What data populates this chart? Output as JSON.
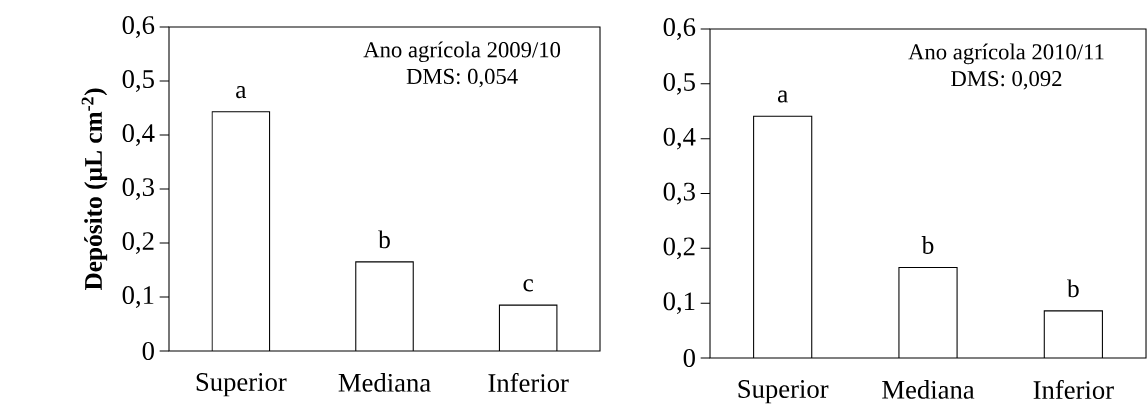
{
  "chart_data": [
    {
      "type": "bar",
      "ylabel": "Depósito (µL cm$^{-2}$)",
      "categories": [
        "Superior",
        "Mediana",
        "Inferior"
      ],
      "values": [
        0.443,
        0.165,
        0.085
      ],
      "color": "#ffffff",
      "ylim": [
        0,
        0.6
      ],
      "yticks": [
        0,
        {
          "value": 0.1,
          "label": "0,1"
        },
        {
          "value": 0.2,
          "label": "0,2"
        },
        {
          "value": 0.3,
          "label": "0,3"
        },
        {
          "value": 0.4,
          "label": "0,4"
        },
        {
          "value": 0.5,
          "label": "0,5"
        },
        {
          "value": 0.6,
          "label": "0,6"
        }
      ],
      "annotations": [
        "Ano agrícola 2009/10",
        "DMS: 0,054",
        {
          "text": "a",
          "x": "Superior",
          "y": 0.443
        },
        {
          "text": "b",
          "x": "Mediana",
          "y": 0.165
        },
        {
          "text": "c",
          "x": "Inferior",
          "y": 0.085
        }
      ]
    },
    {
      "type": "bar",
      "categories": [
        "Superior",
        "Mediana",
        "Inferior"
      ],
      "values": [
        0.441,
        0.165,
        0.086
      ],
      "color": "#ffffff",
      "ylim": [
        0,
        0.6
      ],
      "yticks": [
        0,
        {
          "value": 0.1,
          "label": "0,1"
        },
        {
          "value": 0.2,
          "label": "0,2"
        },
        {
          "value": 0.3,
          "label": "0,3"
        },
        {
          "value": 0.4,
          "label": "0,4"
        },
        {
          "value": 0.5,
          "label": "0,5"
        },
        {
          "value": 0.6,
          "label": "0,6"
        }
      ],
      "annotations": [
        "Ano agrícola 2010/11",
        "DMS: 0,092",
        {
          "text": "a",
          "x": "Superior",
          "y": 0.441
        },
        {
          "text": "b",
          "x": "Mediana",
          "y": 0.165
        },
        {
          "text": "b",
          "x": "Inferior",
          "y": 0.086
        }
      ]
    }
  ]
}
